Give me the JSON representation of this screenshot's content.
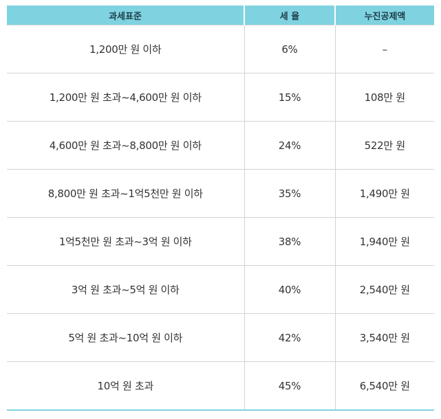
{
  "table": {
    "headers": [
      "과세표준",
      "세 율",
      "누진공제액"
    ],
    "rows": [
      [
        "1,200만 원 이하",
        "6%",
        "–"
      ],
      [
        "1,200만 원 초과~4,600만 원 이하",
        "15%",
        "108만 원"
      ],
      [
        "4,600만 원 초과~8,800만 원 이하",
        "24%",
        "522만 원"
      ],
      [
        "8,800만 원 초과~1억5천만 원 이하",
        "35%",
        "1,490만 원"
      ],
      [
        "1억5천만 원 초과~3억 원 이하",
        "38%",
        "1,940만 원"
      ],
      [
        "3억 원 초과~5억 원 이하",
        "40%",
        "2,540만 원"
      ],
      [
        "5억 원 초과~10억 원 이하",
        "42%",
        "3,540만 원"
      ],
      [
        "10억 원 초과",
        "45%",
        "6,540만 원"
      ]
    ]
  },
  "colors": {
    "header_bg": "#7fd3e0",
    "header_text": "#1f3d4a",
    "grid": "#cfd3d6",
    "body_text": "#333333"
  }
}
